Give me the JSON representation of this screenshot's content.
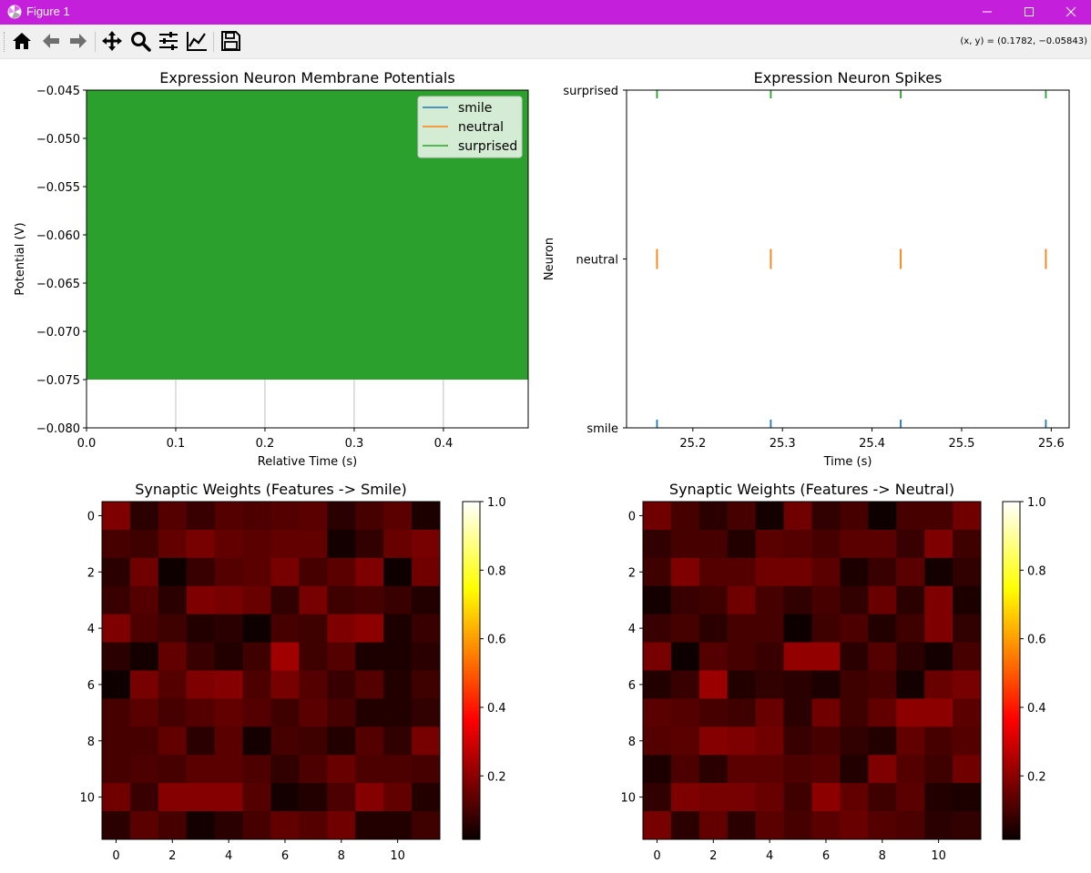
{
  "window": {
    "title": "Figure 1",
    "titlebar_color": "#c41fda"
  },
  "toolbar": {
    "buttons": [
      "home-icon",
      "back-arrow-icon",
      "forward-arrow-icon",
      "pan-move-icon",
      "zoom-magnifier-icon",
      "configure-subplots-icon",
      "edit-axis-icon",
      "save-floppy-icon"
    ],
    "coords": "(x, y) = (0.1782, −0.05843)"
  },
  "chart_data": [
    {
      "type": "line",
      "title": "Expression Neuron Membrane Potentials",
      "xlabel": "Relative Time (s)",
      "ylabel": "Potential (V)",
      "xlim": [
        0.0,
        0.495
      ],
      "ylim": [
        -0.08,
        -0.045
      ],
      "xticks": [
        "0.0",
        "0.1",
        "0.2",
        "0.3",
        "0.4"
      ],
      "yticks": [
        "−0.045",
        "−0.050",
        "−0.055",
        "−0.060",
        "−0.065",
        "−0.070",
        "−0.075",
        "−0.080"
      ],
      "xgrid": true,
      "legend": "top-right",
      "filled_range": [
        -0.075,
        -0.045
      ],
      "series": [
        {
          "name": "smile",
          "color": "#1f77b4"
        },
        {
          "name": "neutral",
          "color": "#ff7f0e"
        },
        {
          "name": "surprised",
          "color": "#2ca02c"
        }
      ]
    },
    {
      "type": "scatter",
      "title": "Expression Neuron Spikes",
      "xlabel": "Time (s)",
      "ylabel": "Neuron",
      "xlim": [
        25.126,
        25.62
      ],
      "xticks": [
        "25.2",
        "25.3",
        "25.4",
        "25.5",
        "25.6"
      ],
      "categories": [
        "smile",
        "neutral",
        "surprised"
      ],
      "series": [
        {
          "name": "smile",
          "color": "#1f77b4",
          "x": [
            25.16,
            25.287,
            25.432,
            25.594
          ]
        },
        {
          "name": "neutral",
          "color": "#ff7f0e",
          "x": [
            25.16,
            25.287,
            25.432,
            25.594
          ]
        },
        {
          "name": "surprised",
          "color": "#2ca02c",
          "x": [
            25.16,
            25.287,
            25.432,
            25.594
          ]
        }
      ]
    },
    {
      "type": "heatmap",
      "title": "Synaptic Weights (Features -> Smile)",
      "colormap": "hot",
      "vlim": [
        0.0,
        1.0
      ],
      "ticks": [
        "0",
        "2",
        "4",
        "6",
        "8",
        "10"
      ],
      "colorbar_ticks": [
        "1.0",
        "0.8",
        "0.6",
        "0.4",
        "0.2"
      ],
      "values": [
        [
          0.18,
          0.06,
          0.12,
          0.08,
          0.12,
          0.11,
          0.12,
          0.13,
          0.06,
          0.1,
          0.13,
          0.04
        ],
        [
          0.1,
          0.09,
          0.14,
          0.17,
          0.14,
          0.13,
          0.14,
          0.14,
          0.03,
          0.07,
          0.15,
          0.17
        ],
        [
          0.06,
          0.16,
          0.02,
          0.08,
          0.12,
          0.13,
          0.17,
          0.1,
          0.13,
          0.18,
          0.02,
          0.16
        ],
        [
          0.08,
          0.12,
          0.06,
          0.18,
          0.17,
          0.15,
          0.07,
          0.17,
          0.09,
          0.1,
          0.08,
          0.05
        ],
        [
          0.18,
          0.11,
          0.09,
          0.05,
          0.06,
          0.02,
          0.1,
          0.09,
          0.18,
          0.2,
          0.04,
          0.08
        ],
        [
          0.06,
          0.03,
          0.14,
          0.08,
          0.05,
          0.09,
          0.23,
          0.09,
          0.12,
          0.04,
          0.04,
          0.06
        ],
        [
          0.02,
          0.17,
          0.12,
          0.18,
          0.19,
          0.11,
          0.17,
          0.12,
          0.08,
          0.12,
          0.05,
          0.09
        ],
        [
          0.1,
          0.13,
          0.1,
          0.12,
          0.14,
          0.12,
          0.09,
          0.13,
          0.1,
          0.05,
          0.05,
          0.07
        ],
        [
          0.1,
          0.1,
          0.14,
          0.06,
          0.13,
          0.03,
          0.1,
          0.09,
          0.05,
          0.12,
          0.07,
          0.17
        ],
        [
          0.1,
          0.11,
          0.1,
          0.13,
          0.13,
          0.11,
          0.07,
          0.11,
          0.15,
          0.11,
          0.11,
          0.1
        ],
        [
          0.16,
          0.08,
          0.19,
          0.19,
          0.19,
          0.12,
          0.03,
          0.05,
          0.11,
          0.19,
          0.14,
          0.05
        ],
        [
          0.06,
          0.13,
          0.1,
          0.03,
          0.06,
          0.1,
          0.14,
          0.12,
          0.16,
          0.05,
          0.05,
          0.09
        ]
      ]
    },
    {
      "type": "heatmap",
      "title": "Synaptic Weights (Features -> Neutral)",
      "colormap": "hot",
      "vlim": [
        0.0,
        1.0
      ],
      "ticks": [
        "0",
        "2",
        "4",
        "6",
        "8",
        "10"
      ],
      "colorbar_ticks": [
        "1.0",
        "0.8",
        "0.6",
        "0.4",
        "0.2"
      ],
      "values": [
        [
          0.16,
          0.1,
          0.06,
          0.1,
          0.03,
          0.16,
          0.07,
          0.1,
          0.02,
          0.1,
          0.1,
          0.16
        ],
        [
          0.07,
          0.1,
          0.1,
          0.05,
          0.13,
          0.12,
          0.1,
          0.13,
          0.13,
          0.08,
          0.18,
          0.09
        ],
        [
          0.09,
          0.18,
          0.12,
          0.12,
          0.16,
          0.16,
          0.13,
          0.04,
          0.08,
          0.13,
          0.03,
          0.07
        ],
        [
          0.03,
          0.08,
          0.09,
          0.16,
          0.1,
          0.07,
          0.1,
          0.07,
          0.15,
          0.06,
          0.18,
          0.04
        ],
        [
          0.08,
          0.1,
          0.06,
          0.1,
          0.1,
          0.02,
          0.09,
          0.11,
          0.05,
          0.09,
          0.18,
          0.07
        ],
        [
          0.17,
          0.02,
          0.12,
          0.1,
          0.08,
          0.21,
          0.21,
          0.06,
          0.12,
          0.06,
          0.03,
          0.1
        ],
        [
          0.05,
          0.08,
          0.22,
          0.05,
          0.07,
          0.06,
          0.04,
          0.09,
          0.1,
          0.03,
          0.15,
          0.17
        ],
        [
          0.13,
          0.12,
          0.1,
          0.09,
          0.15,
          0.06,
          0.16,
          0.09,
          0.14,
          0.2,
          0.2,
          0.13
        ],
        [
          0.12,
          0.13,
          0.19,
          0.18,
          0.16,
          0.08,
          0.1,
          0.07,
          0.05,
          0.14,
          0.1,
          0.12
        ],
        [
          0.04,
          0.11,
          0.06,
          0.13,
          0.13,
          0.11,
          0.12,
          0.05,
          0.18,
          0.12,
          0.09,
          0.16
        ],
        [
          0.07,
          0.18,
          0.17,
          0.17,
          0.15,
          0.09,
          0.2,
          0.14,
          0.09,
          0.13,
          0.05,
          0.04
        ],
        [
          0.17,
          0.06,
          0.14,
          0.06,
          0.13,
          0.1,
          0.13,
          0.15,
          0.12,
          0.11,
          0.06,
          0.07
        ]
      ]
    }
  ]
}
